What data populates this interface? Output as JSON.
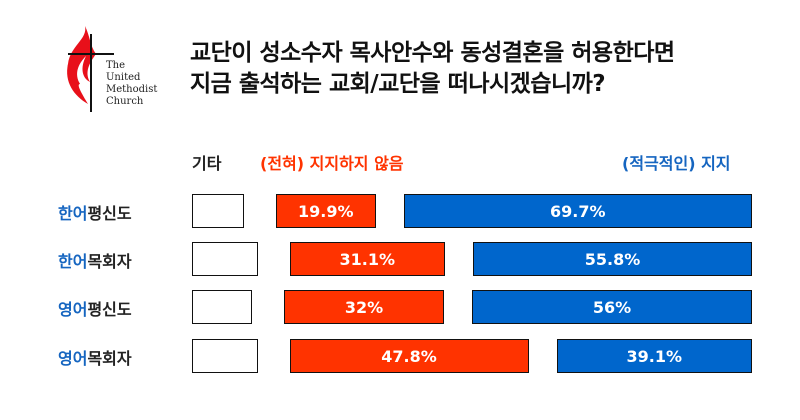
{
  "logo": {
    "lines": [
      "The",
      "United",
      "Methodist",
      "Church"
    ]
  },
  "title": [
    "교단이 성소수자 목사안수와 동성결혼을 허용한다면",
    "지금 출석하는 교회/교단을 떠나시겠습니까?"
  ],
  "colors": {
    "other": "#ffffff",
    "leave": "#ff3300",
    "stay": "#0066cc",
    "highlight": "#1565c0"
  },
  "chart_data": {
    "type": "bar",
    "stacked": true,
    "orientation": "horizontal",
    "title": "교단이 성소수자 목사안수와 동성결혼을 허용한다면 지금 출석하는 교회/교단을 떠나시겠습니까?",
    "legend": [
      "기타",
      "(전혀) 지지하지 않음",
      "(적극적인) 지지"
    ],
    "categories": [
      {
        "hl": "한어",
        "rest": "평신도"
      },
      {
        "hl": "한어",
        "rest": "목회자"
      },
      {
        "hl": "영어",
        "rest": "평신도"
      },
      {
        "hl": "영어",
        "rest": "목회자"
      }
    ],
    "series": [
      {
        "name": "기타",
        "values": [
          10.4,
          13.1,
          12,
          13.1
        ]
      },
      {
        "name": "(전혀) 지지하지 않음",
        "values": [
          19.9,
          31.1,
          32,
          47.8
        ],
        "labels": [
          "19.9%",
          "31.1%",
          "32%",
          "47.8%"
        ]
      },
      {
        "name": "(적극적인) 지지",
        "values": [
          69.7,
          55.8,
          56,
          39.1
        ],
        "labels": [
          "69.7%",
          "55.8%",
          "56%",
          "39.1%"
        ]
      }
    ],
    "unit": "%"
  }
}
